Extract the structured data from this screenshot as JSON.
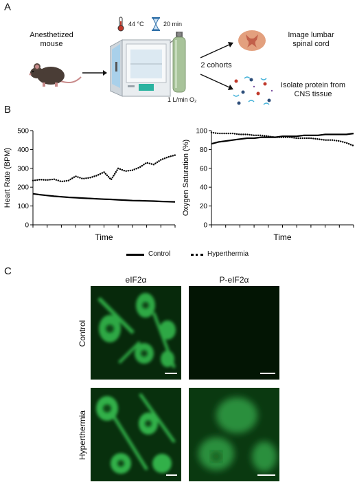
{
  "panel_a": {
    "letter": "A",
    "mouse_label": "Anesthetized mouse",
    "temperature": "44 °C",
    "duration": "20 min",
    "flow": "1 L/min O₂",
    "cohorts": "2 cohorts",
    "outcome_top": "Image lumbar spinal cord",
    "outcome_bottom": "Isolate protein from CNS tissue"
  },
  "panel_b": {
    "letter": "B",
    "legend": {
      "control": "Control",
      "hyperthermia": "Hyperthermia"
    }
  },
  "panel_c": {
    "letter": "C",
    "col_labels": [
      "eIF2α",
      "P-eIF2α"
    ],
    "row_labels": [
      "Control",
      "Hyperthermia"
    ],
    "colors": {
      "background": "#041a06",
      "signal": "#39d155"
    }
  },
  "chart_data": [
    {
      "type": "line",
      "xlabel": "Time",
      "ylabel": "Heart Rate (BPM)",
      "ylim": [
        0,
        500
      ],
      "yticks": [
        0,
        100,
        200,
        300,
        400,
        500
      ],
      "x": [
        0,
        5,
        10,
        15,
        20,
        25,
        30,
        35,
        40,
        45,
        50,
        55,
        60,
        65,
        70,
        75,
        80,
        85,
        90,
        95,
        100
      ],
      "series": [
        {
          "name": "Control",
          "style": "solid",
          "values": [
            165,
            160,
            156,
            152,
            149,
            146,
            144,
            142,
            140,
            138,
            136,
            135,
            133,
            131,
            129,
            128,
            127,
            126,
            124,
            123,
            122
          ]
        },
        {
          "name": "Hyperthermia",
          "style": "dotted",
          "values": [
            235,
            240,
            238,
            242,
            230,
            235,
            258,
            245,
            250,
            262,
            280,
            240,
            300,
            285,
            290,
            305,
            330,
            320,
            345,
            360,
            370
          ]
        }
      ]
    },
    {
      "type": "line",
      "xlabel": "Time",
      "ylabel": "Oxygen Saturation (%)",
      "ylim": [
        0,
        100
      ],
      "yticks": [
        0,
        20,
        40,
        60,
        80,
        100
      ],
      "x": [
        0,
        5,
        10,
        15,
        20,
        25,
        30,
        35,
        40,
        45,
        50,
        55,
        60,
        65,
        70,
        75,
        80,
        85,
        90,
        95,
        100
      ],
      "series": [
        {
          "name": "Control",
          "style": "solid",
          "values": [
            86,
            88,
            89,
            90,
            91,
            92,
            92,
            93,
            93,
            93,
            94,
            94,
            94,
            95,
            95,
            95,
            96,
            96,
            96,
            96,
            97
          ]
        },
        {
          "name": "Hyperthermia",
          "style": "dotted",
          "values": [
            98,
            97,
            97,
            97,
            96,
            96,
            95,
            95,
            94,
            93,
            93,
            93,
            92,
            92,
            92,
            91,
            90,
            90,
            89,
            87,
            84
          ]
        }
      ]
    }
  ]
}
